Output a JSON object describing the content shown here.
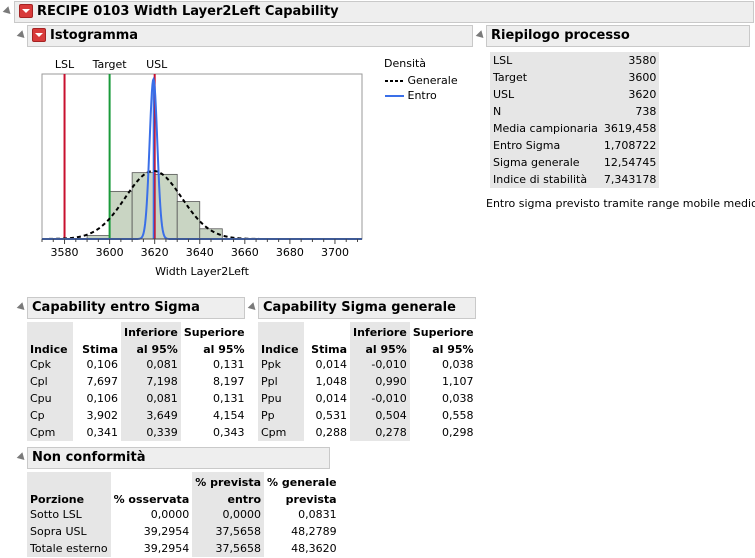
{
  "report_title": "RECIPE 0103 Width Layer2Left Capability",
  "histogram": {
    "title": "Istogramma",
    "legend_title": "Densità",
    "legend_items": [
      {
        "label": "Generale",
        "style": "dashed",
        "color": "#000000"
      },
      {
        "label": "Entro",
        "style": "solid",
        "color": "#3a6fe8"
      }
    ]
  },
  "chart_data": {
    "type": "histogram",
    "xlabel": "Width Layer2Left",
    "xlim": [
      3570,
      3712
    ],
    "x_ticks": [
      3580,
      3600,
      3620,
      3640,
      3660,
      3680,
      3700
    ],
    "x_tick_labels": [
      "3580",
      "3600",
      "3620",
      "3640",
      "3660",
      "3680",
      "3700"
    ],
    "bin_width": 10,
    "bins": [
      {
        "from": 3590,
        "to": 3600,
        "height": 0.02
      },
      {
        "from": 3600,
        "to": 3610,
        "height": 0.28
      },
      {
        "from": 3610,
        "to": 3620,
        "height": 0.39
      },
      {
        "from": 3620,
        "to": 3630,
        "height": 0.38
      },
      {
        "from": 3630,
        "to": 3640,
        "height": 0.22
      },
      {
        "from": 3640,
        "to": 3650,
        "height": 0.06
      }
    ],
    "spec_lines": [
      {
        "label": "LSL",
        "x": 3580,
        "color": "#c8102e"
      },
      {
        "label": "Target",
        "x": 3600,
        "color": "#1a9a3a"
      },
      {
        "label": "USL",
        "x": 3620,
        "color": "#c8102e"
      }
    ],
    "mean_line": {
      "x": 3619.458,
      "color": "#3a6fe8"
    },
    "curves": [
      {
        "name": "Generale",
        "mean": 3619.458,
        "sigma": 12.54745,
        "style": "dashed",
        "color": "#000000"
      },
      {
        "name": "Entro",
        "mean": 3619.458,
        "sigma": 1.708722,
        "style": "solid",
        "color": "#3a6fe8"
      }
    ]
  },
  "summary": {
    "title": "Riepilogo processo",
    "rows": [
      {
        "label": "LSL",
        "value": "3580"
      },
      {
        "label": "Target",
        "value": "3600"
      },
      {
        "label": "USL",
        "value": "3620"
      },
      {
        "label": "N",
        "value": "738"
      },
      {
        "label": "Media campionaria",
        "value": "3619,458"
      },
      {
        "label": "Entro Sigma",
        "value": "1,708722"
      },
      {
        "label": "Sigma generale",
        "value": "12,54745"
      },
      {
        "label": "Indice di stabilità",
        "value": "7,343178"
      }
    ],
    "note": "Entro sigma previsto tramite range mobile medio."
  },
  "cap_within": {
    "title": "Capability entro Sigma",
    "headers": {
      "col1": "Indice",
      "col2": "Stima",
      "col3a": "Inferiore",
      "col3b": "al 95%",
      "col4a": "Superiore",
      "col4b": "al 95%"
    },
    "rows": [
      {
        "idx": "Cpk",
        "est": "0,106",
        "lo": "0,081",
        "hi": "0,131"
      },
      {
        "idx": "Cpl",
        "est": "7,697",
        "lo": "7,198",
        "hi": "8,197"
      },
      {
        "idx": "Cpu",
        "est": "0,106",
        "lo": "0,081",
        "hi": "0,131"
      },
      {
        "idx": "Cp",
        "est": "3,902",
        "lo": "3,649",
        "hi": "4,154"
      },
      {
        "idx": "Cpm",
        "est": "0,341",
        "lo": "0,339",
        "hi": "0,343"
      }
    ]
  },
  "cap_overall": {
    "title": "Capability Sigma generale",
    "headers": {
      "col1": "Indice",
      "col2": "Stima",
      "col3a": "Inferiore",
      "col3b": "al 95%",
      "col4a": "Superiore",
      "col4b": "al 95%"
    },
    "rows": [
      {
        "idx": "Ppk",
        "est": "0,014",
        "lo": "-0,010",
        "hi": "0,038"
      },
      {
        "idx": "Ppl",
        "est": "1,048",
        "lo": "0,990",
        "hi": "1,107"
      },
      {
        "idx": "Ppu",
        "est": "0,014",
        "lo": "-0,010",
        "hi": "0,038"
      },
      {
        "idx": "Pp",
        "est": "0,531",
        "lo": "0,504",
        "hi": "0,558"
      },
      {
        "idx": "Cpm",
        "est": "0,288",
        "lo": "0,278",
        "hi": "0,298"
      }
    ]
  },
  "nonconf": {
    "title": "Non conformità",
    "headers": {
      "col1": "Porzione",
      "col2": "% osservata",
      "col3a": "% prevista",
      "col3b": "entro",
      "col4a": "% generale",
      "col4b": "prevista"
    },
    "rows": [
      {
        "p": "Sotto LSL",
        "obs": "0,0000",
        "within": "0,0000",
        "overall": "0,0831"
      },
      {
        "p": "Sopra USL",
        "obs": "39,2954",
        "within": "37,5658",
        "overall": "48,2789"
      },
      {
        "p": "Totale esterno",
        "obs": "39,2954",
        "within": "37,5658",
        "overall": "48,3620"
      }
    ]
  }
}
